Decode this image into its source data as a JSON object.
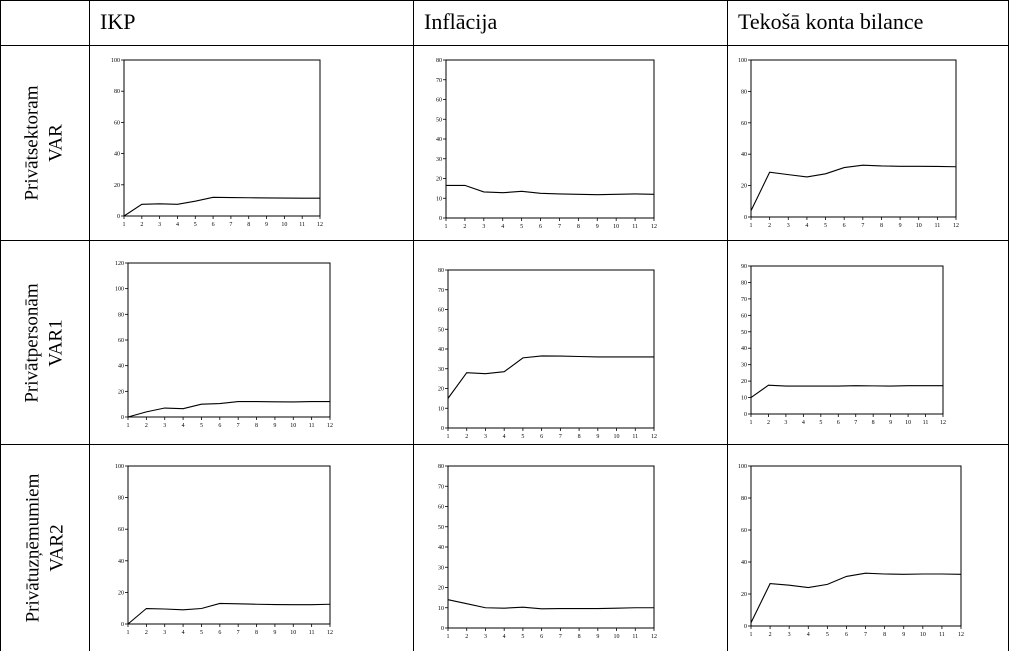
{
  "table": {
    "columns": [
      "IKP",
      "Inflācija",
      "Tekošā konta bilance"
    ],
    "rows": [
      {
        "line1": "Privātsektoram",
        "line2": "VAR"
      },
      {
        "line1": "Privātpersonām",
        "line2": "VAR1"
      },
      {
        "line1": "Privātuzņēmumiem",
        "line2": "VAR2"
      }
    ]
  },
  "chart_data": [
    {
      "type": "line",
      "x": [
        1,
        2,
        3,
        4,
        5,
        6,
        7,
        8,
        9,
        10,
        11,
        12
      ],
      "ylim": [
        0,
        100
      ],
      "yticks": [
        0,
        20,
        40,
        60,
        80,
        100
      ],
      "series": [
        {
          "values": [
            0,
            7.5,
            7.8,
            7.5,
            9.5,
            12,
            11.8,
            11.7,
            11.6,
            11.5,
            11.4,
            11.4
          ]
        }
      ],
      "grid": false
    },
    {
      "type": "line",
      "x": [
        1,
        2,
        3,
        4,
        5,
        6,
        7,
        8,
        9,
        10,
        11,
        12
      ],
      "ylim": [
        0,
        80
      ],
      "yticks": [
        0,
        10,
        20,
        30,
        40,
        50,
        60,
        70,
        80
      ],
      "series": [
        {
          "values": [
            16.5,
            16.5,
            13.2,
            12.8,
            13.5,
            12.5,
            12.2,
            12,
            11.8,
            12,
            12.2,
            12
          ]
        }
      ],
      "grid": false
    },
    {
      "type": "line",
      "x": [
        1,
        2,
        3,
        4,
        5,
        6,
        7,
        8,
        9,
        10,
        11,
        12
      ],
      "ylim": [
        0,
        100
      ],
      "yticks": [
        0,
        20,
        40,
        60,
        80,
        100
      ],
      "series": [
        {
          "values": [
            4,
            28.5,
            27,
            25.5,
            27.5,
            31.5,
            33,
            32.5,
            32.3,
            32.3,
            32.2,
            32
          ]
        }
      ],
      "grid": false
    },
    {
      "type": "line",
      "x": [
        1,
        2,
        3,
        4,
        5,
        6,
        7,
        8,
        9,
        10,
        11,
        12
      ],
      "ylim": [
        0,
        120
      ],
      "yticks": [
        0,
        20,
        40,
        60,
        80,
        100,
        120
      ],
      "series": [
        {
          "values": [
            0,
            4,
            7,
            6.5,
            10,
            10.5,
            12,
            12,
            11.8,
            11.7,
            12,
            12
          ]
        }
      ],
      "grid": false
    },
    {
      "type": "line",
      "x": [
        1,
        2,
        3,
        4,
        5,
        6,
        7,
        8,
        9,
        10,
        11,
        12
      ],
      "ylim": [
        0,
        80
      ],
      "yticks": [
        0,
        10,
        20,
        30,
        40,
        50,
        60,
        70,
        80
      ],
      "series": [
        {
          "values": [
            15,
            28,
            27.5,
            28.5,
            35.5,
            36.5,
            36.4,
            36.2,
            36,
            36,
            36,
            36
          ]
        }
      ],
      "grid": false
    },
    {
      "type": "line",
      "x": [
        1,
        2,
        3,
        4,
        5,
        6,
        7,
        8,
        9,
        10,
        11,
        12
      ],
      "ylim": [
        0,
        90
      ],
      "yticks": [
        0,
        10,
        20,
        30,
        40,
        50,
        60,
        70,
        80,
        90
      ],
      "series": [
        {
          "values": [
            10,
            17.5,
            17,
            17,
            17,
            17,
            17.2,
            17.1,
            17,
            17.2,
            17.2,
            17.2
          ]
        }
      ],
      "grid": false
    },
    {
      "type": "line",
      "x": [
        1,
        2,
        3,
        4,
        5,
        6,
        7,
        8,
        9,
        10,
        11,
        12
      ],
      "ylim": [
        0,
        100
      ],
      "yticks": [
        0,
        20,
        40,
        60,
        80,
        100
      ],
      "series": [
        {
          "values": [
            0,
            9.8,
            9.5,
            9,
            9.8,
            13,
            12.8,
            12.5,
            12.3,
            12.2,
            12.2,
            12.5
          ]
        }
      ],
      "grid": false
    },
    {
      "type": "line",
      "x": [
        1,
        2,
        3,
        4,
        5,
        6,
        7,
        8,
        9,
        10,
        11,
        12
      ],
      "ylim": [
        0,
        80
      ],
      "yticks": [
        0,
        10,
        20,
        30,
        40,
        50,
        60,
        70,
        80
      ],
      "series": [
        {
          "values": [
            14,
            12,
            10,
            9.8,
            10.3,
            9.5,
            9.6,
            9.6,
            9.6,
            9.8,
            10,
            10
          ]
        }
      ],
      "grid": false
    },
    {
      "type": "line",
      "x": [
        1,
        2,
        3,
        4,
        5,
        6,
        7,
        8,
        9,
        10,
        11,
        12
      ],
      "ylim": [
        0,
        100
      ],
      "yticks": [
        0,
        20,
        40,
        60,
        80,
        100
      ],
      "series": [
        {
          "values": [
            2,
            26.5,
            25.5,
            24,
            26,
            31,
            33,
            32.5,
            32.3,
            32.5,
            32.5,
            32.3
          ]
        }
      ],
      "grid": false
    }
  ]
}
